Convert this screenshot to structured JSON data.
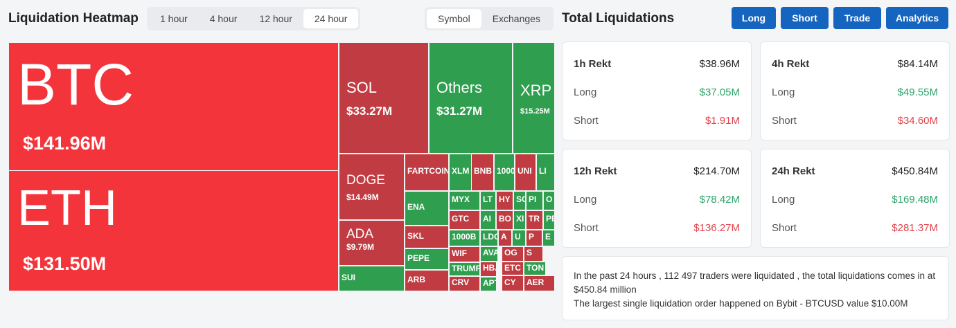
{
  "header": {
    "title": "Liquidation Heatmap",
    "time_tabs": [
      "1 hour",
      "4 hour",
      "12 hour",
      "24 hour"
    ],
    "view_tabs": [
      "Symbol",
      "Exchanges"
    ]
  },
  "panel": {
    "title": "Total Liquidations",
    "buttons": [
      "Long",
      "Short",
      "Trade",
      "Analytics"
    ],
    "cards": [
      {
        "label": "1h Rekt",
        "total": "$38.96M",
        "long_label": "Long",
        "long": "$37.05M",
        "short_label": "Short",
        "short": "$1.91M"
      },
      {
        "label": "4h Rekt",
        "total": "$84.14M",
        "long_label": "Long",
        "long": "$49.55M",
        "short_label": "Short",
        "short": "$34.60M"
      },
      {
        "label": "12h Rekt",
        "total": "$214.70M",
        "long_label": "Long",
        "long": "$78.42M",
        "short_label": "Short",
        "short": "$136.27M"
      },
      {
        "label": "24h Rekt",
        "total": "$450.84M",
        "long_label": "Long",
        "long": "$169.48M",
        "short_label": "Short",
        "short": "$281.37M"
      }
    ],
    "note": [
      "In the past 24 hours , 112 497 traders were liquidated , the total liquidations comes in at $450.84 million",
      "The largest single liquidation order happened on Bybit - BTCUSD value $10.00M"
    ]
  },
  "treemap": {
    "tiles": [
      {
        "label": "BTC",
        "value": "$141.96M",
        "color": "#f4343b"
      },
      {
        "label": "ETH",
        "value": "$131.50M",
        "color": "#f4343b"
      },
      {
        "label": "SOL",
        "value": "$33.27M",
        "color": "#c13c42"
      },
      {
        "label": "Others",
        "value": "$31.27M",
        "color": "#2f9e4e"
      },
      {
        "label": "XRP",
        "value": "$15.25M",
        "color": "#2f9e4e"
      },
      {
        "label": "DOGE",
        "value": "$14.49M",
        "color": "#c13c42"
      },
      {
        "label": "ADA",
        "value": "$9.79M",
        "color": "#c13c42"
      },
      {
        "label": "SUI",
        "color": "#2f9e4e"
      },
      {
        "label": "FARTCOIN",
        "color": "#c13c42"
      },
      {
        "label": "XLM",
        "color": "#2f9e4e"
      },
      {
        "label": "BNB",
        "color": "#c13c42"
      },
      {
        "label": "1000",
        "color": "#2f9e4e"
      },
      {
        "label": "UNI",
        "color": "#c13c42"
      },
      {
        "label": "LI",
        "color": "#2f9e4e"
      },
      {
        "label": "ENA",
        "color": "#2f9e4e"
      },
      {
        "label": "SKL",
        "color": "#c13c42"
      },
      {
        "label": "PEPE",
        "color": "#2f9e4e"
      },
      {
        "label": "ARB",
        "color": "#c13c42"
      },
      {
        "label": "MYX",
        "color": "#2f9e4e"
      },
      {
        "label": "GTC",
        "color": "#c13c42"
      },
      {
        "label": "1000B",
        "color": "#2f9e4e"
      },
      {
        "label": "WIF",
        "color": "#c13c42"
      },
      {
        "label": "TRUMP",
        "color": "#2f9e4e"
      },
      {
        "label": "CRV",
        "color": "#c13c42"
      },
      {
        "label": "LT",
        "color": "#2f9e4e"
      },
      {
        "label": "HY",
        "color": "#c13c42"
      },
      {
        "label": "SC",
        "color": "#2f9e4e"
      },
      {
        "label": "PI",
        "color": "#2f9e4e"
      },
      {
        "label": "O",
        "color": "#2f9e4e"
      },
      {
        "label": "AI",
        "color": "#2f9e4e"
      },
      {
        "label": "BO",
        "color": "#c13c42"
      },
      {
        "label": "XI",
        "color": "#2f9e4e"
      },
      {
        "label": "TR",
        "color": "#c13c42"
      },
      {
        "label": "PE",
        "color": "#2f9e4e"
      },
      {
        "label": "LDO",
        "color": "#2f9e4e"
      },
      {
        "label": "A",
        "color": "#c13c42"
      },
      {
        "label": "U",
        "color": "#2f9e4e"
      },
      {
        "label": "P",
        "color": "#c13c42"
      },
      {
        "label": "E",
        "color": "#2f9e4e"
      },
      {
        "label": "AVA",
        "color": "#2f9e4e"
      },
      {
        "label": "OG",
        "color": "#c13c42"
      },
      {
        "label": "S",
        "color": "#c13c42"
      },
      {
        "label": "HBA",
        "color": "#c13c42"
      },
      {
        "label": "ETC",
        "color": "#c13c42"
      },
      {
        "label": "TON",
        "color": "#2f9e4e"
      },
      {
        "label": "APT",
        "color": "#2f9e4e"
      },
      {
        "label": "CY",
        "color": "#c13c42"
      },
      {
        "label": "AER",
        "color": "#c13c42"
      }
    ]
  }
}
